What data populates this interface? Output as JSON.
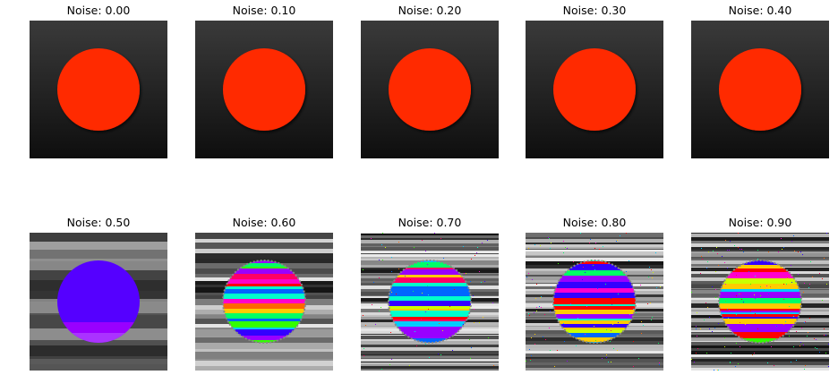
{
  "panels": [
    {
      "title": "Noise: 0.00"
    },
    {
      "title": "Noise: 0.10"
    },
    {
      "title": "Noise: 0.20"
    },
    {
      "title": "Noise: 0.30"
    },
    {
      "title": "Noise: 0.40"
    },
    {
      "title": "Noise: 0.50"
    },
    {
      "title": "Noise: 0.60"
    },
    {
      "title": "Noise: 0.70"
    },
    {
      "title": "Noise: 0.80"
    },
    {
      "title": "Noise: 0.90"
    }
  ],
  "colors": {
    "circle_clean": "#ff2a00",
    "background_dark": "#0e0e0e",
    "background_light": "#3a3a3a"
  }
}
